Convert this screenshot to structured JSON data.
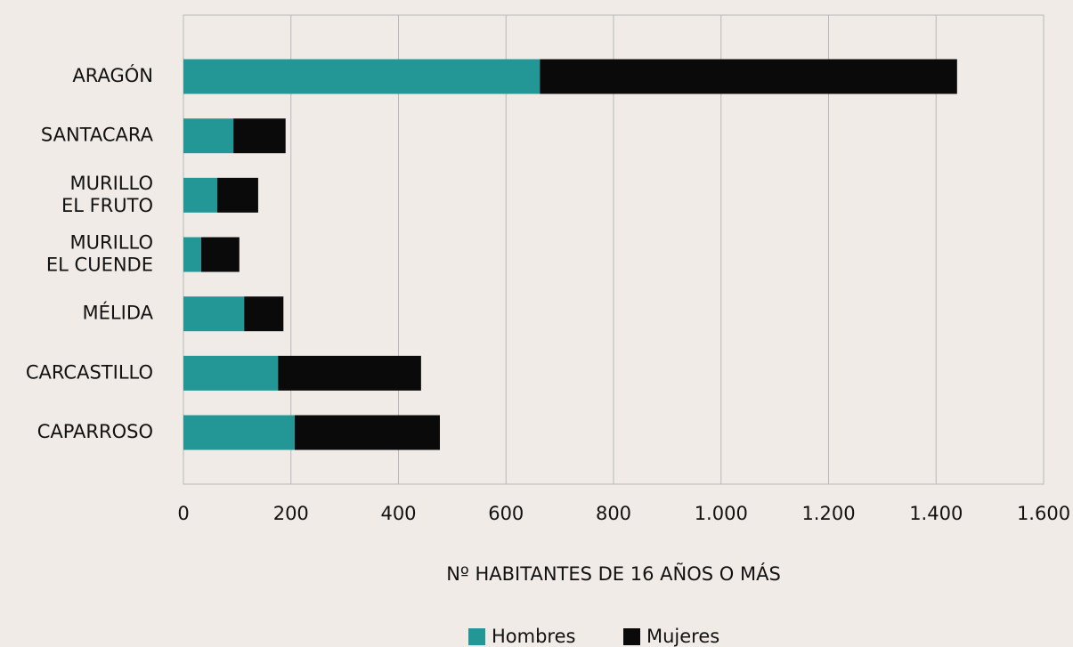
{
  "chart_data": {
    "type": "bar",
    "orientation": "horizontal",
    "stacked": true,
    "categories": [
      "ARAGÓN",
      "SANTACARA",
      "MURILLO\nEL FRUTO",
      "MURILLO\nEL CUENDE",
      "MÉLIDA",
      "CARCASTILLO",
      "CAPARROSO"
    ],
    "series": [
      {
        "name": "Hombres",
        "color": "#239696",
        "values": [
          663,
          93,
          63,
          33,
          113,
          176,
          207
        ]
      },
      {
        "name": "Mujeres",
        "color": "#0a0a0a",
        "values": [
          776,
          97,
          76,
          71,
          73,
          266,
          270
        ]
      }
    ],
    "xlabel": "Nº HABITANTES DE 16 AÑOS O MÁS",
    "xlim": [
      0,
      1600
    ],
    "xticks": [
      0,
      200,
      400,
      600,
      800,
      {
        "value": 1000,
        "label": "1.000"
      },
      {
        "value": 1200,
        "label": "1.200"
      },
      {
        "value": 1400,
        "label": "1.400"
      },
      {
        "value": 1600,
        "label": "1.600"
      }
    ],
    "grid": true,
    "legend": "bottom"
  }
}
